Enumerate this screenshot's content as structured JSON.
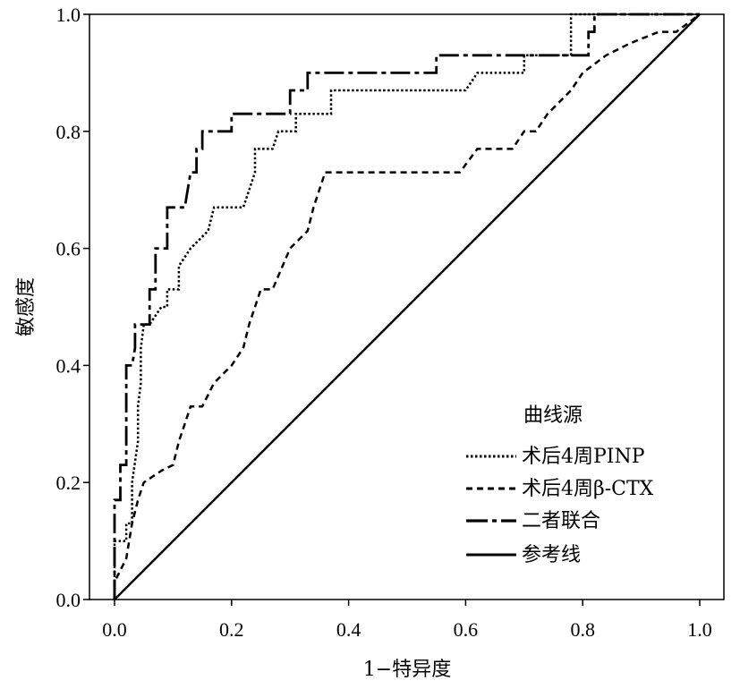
{
  "chart_data": {
    "type": "line",
    "title": "",
    "xlabel": "1−特异度",
    "ylabel": "敏感度",
    "xlim": [
      0,
      1
    ],
    "ylim": [
      0,
      1
    ],
    "xticks": [
      "0.0",
      "0.2",
      "0.4",
      "0.6",
      "0.8",
      "1.0"
    ],
    "yticks": [
      "0.0",
      "0.2",
      "0.4",
      "0.6",
      "0.8",
      "1.0"
    ],
    "grid": false,
    "legend": {
      "title": "曲线源",
      "placement": "bottom-right"
    },
    "series": [
      {
        "name": "术后4周PINP",
        "dash": "dotted",
        "color": "#000000",
        "points": [
          [
            0,
            0
          ],
          [
            0,
            0.03
          ],
          [
            0,
            0.1
          ],
          [
            0.02,
            0.1
          ],
          [
            0.02,
            0.13
          ],
          [
            0.03,
            0.13
          ],
          [
            0.03,
            0.2
          ],
          [
            0.04,
            0.27
          ],
          [
            0.04,
            0.33
          ],
          [
            0.045,
            0.37
          ],
          [
            0.045,
            0.43
          ],
          [
            0.05,
            0.47
          ],
          [
            0.06,
            0.47
          ],
          [
            0.08,
            0.5
          ],
          [
            0.09,
            0.5
          ],
          [
            0.09,
            0.53
          ],
          [
            0.11,
            0.53
          ],
          [
            0.11,
            0.57
          ],
          [
            0.13,
            0.6
          ],
          [
            0.16,
            0.63
          ],
          [
            0.17,
            0.67
          ],
          [
            0.22,
            0.67
          ],
          [
            0.24,
            0.73
          ],
          [
            0.24,
            0.77
          ],
          [
            0.27,
            0.77
          ],
          [
            0.28,
            0.8
          ],
          [
            0.31,
            0.8
          ],
          [
            0.31,
            0.83
          ],
          [
            0.37,
            0.83
          ],
          [
            0.37,
            0.87
          ],
          [
            0.6,
            0.87
          ],
          [
            0.62,
            0.9
          ],
          [
            0.7,
            0.9
          ],
          [
            0.7,
            0.93
          ],
          [
            0.78,
            0.93
          ],
          [
            0.78,
            1.0
          ],
          [
            1.0,
            1.0
          ]
        ]
      },
      {
        "name": "术后4周β-CTX",
        "dash": "dashed",
        "color": "#000000",
        "points": [
          [
            0,
            0
          ],
          [
            0,
            0.03
          ],
          [
            0.02,
            0.07
          ],
          [
            0.03,
            0.13
          ],
          [
            0.04,
            0.17
          ],
          [
            0.05,
            0.2
          ],
          [
            0.08,
            0.22
          ],
          [
            0.1,
            0.23
          ],
          [
            0.11,
            0.27
          ],
          [
            0.12,
            0.3
          ],
          [
            0.13,
            0.33
          ],
          [
            0.15,
            0.33
          ],
          [
            0.17,
            0.37
          ],
          [
            0.2,
            0.4
          ],
          [
            0.22,
            0.43
          ],
          [
            0.23,
            0.47
          ],
          [
            0.24,
            0.5
          ],
          [
            0.25,
            0.53
          ],
          [
            0.27,
            0.53
          ],
          [
            0.3,
            0.6
          ],
          [
            0.33,
            0.63
          ],
          [
            0.34,
            0.67
          ],
          [
            0.36,
            0.73
          ],
          [
            0.59,
            0.73
          ],
          [
            0.62,
            0.77
          ],
          [
            0.68,
            0.77
          ],
          [
            0.7,
            0.8
          ],
          [
            0.72,
            0.8
          ],
          [
            0.74,
            0.83
          ],
          [
            0.78,
            0.87
          ],
          [
            0.8,
            0.9
          ],
          [
            0.84,
            0.93
          ],
          [
            0.88,
            0.95
          ],
          [
            0.93,
            0.97
          ],
          [
            0.96,
            0.97
          ],
          [
            1.0,
            1.0
          ]
        ]
      },
      {
        "name": "二者联合",
        "dash": "dash-dot",
        "color": "#000000",
        "points": [
          [
            0,
            0
          ],
          [
            0,
            0.17
          ],
          [
            0.01,
            0.17
          ],
          [
            0.01,
            0.23
          ],
          [
            0.02,
            0.23
          ],
          [
            0.02,
            0.4
          ],
          [
            0.03,
            0.4
          ],
          [
            0.035,
            0.43
          ],
          [
            0.035,
            0.47
          ],
          [
            0.06,
            0.47
          ],
          [
            0.06,
            0.53
          ],
          [
            0.07,
            0.53
          ],
          [
            0.07,
            0.6
          ],
          [
            0.09,
            0.6
          ],
          [
            0.09,
            0.67
          ],
          [
            0.12,
            0.67
          ],
          [
            0.13,
            0.73
          ],
          [
            0.14,
            0.73
          ],
          [
            0.14,
            0.77
          ],
          [
            0.15,
            0.77
          ],
          [
            0.15,
            0.8
          ],
          [
            0.2,
            0.8
          ],
          [
            0.2,
            0.83
          ],
          [
            0.3,
            0.83
          ],
          [
            0.3,
            0.87
          ],
          [
            0.33,
            0.87
          ],
          [
            0.33,
            0.9
          ],
          [
            0.55,
            0.9
          ],
          [
            0.55,
            0.93
          ],
          [
            0.81,
            0.93
          ],
          [
            0.81,
            0.97
          ],
          [
            0.82,
            0.97
          ],
          [
            0.82,
            1.0
          ],
          [
            1.0,
            1.0
          ]
        ]
      },
      {
        "name": "参考线",
        "dash": "solid",
        "color": "#000000",
        "points": [
          [
            0,
            0
          ],
          [
            1,
            1
          ]
        ]
      }
    ]
  }
}
